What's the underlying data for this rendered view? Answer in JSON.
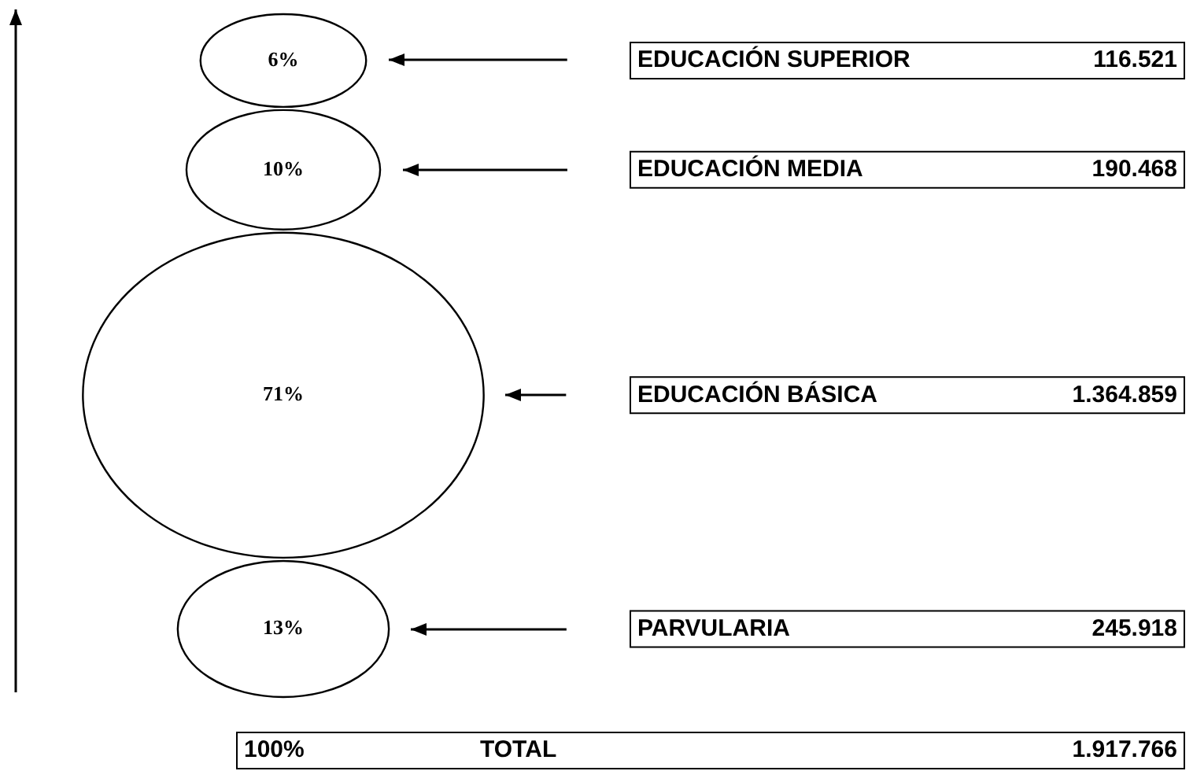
{
  "chart_data": {
    "type": "other",
    "categories": [
      "EDUCACIÓN SUPERIOR",
      "EDUCACIÓN MEDIA",
      "EDUCACIÓN BÁSICA",
      "PARVULARIA"
    ],
    "series": [
      {
        "values": [
          6,
          10,
          71,
          13
        ],
        "value_labels": [
          "6%",
          "10%",
          "71%",
          "13%"
        ]
      },
      {
        "values": [
          116521,
          190468,
          1364859,
          245918
        ],
        "value_labels": [
          "116.521",
          "190.468",
          "1.364.859",
          "245.918"
        ]
      }
    ],
    "annotations": [
      "100%",
      "TOTAL",
      "1.917.766"
    ]
  }
}
